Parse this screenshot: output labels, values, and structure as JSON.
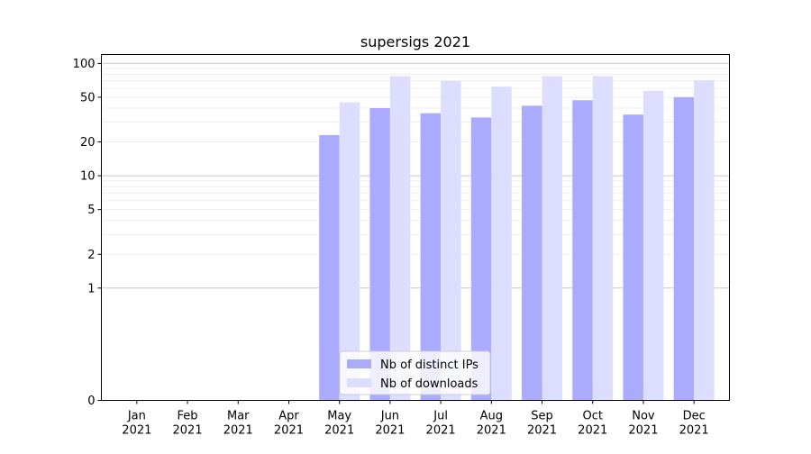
{
  "chart_data": {
    "type": "bar",
    "title": "supersigs 2021",
    "xlabel": "",
    "ylabel": "",
    "yscale": "symlog",
    "ylim": [
      0,
      120
    ],
    "categories": [
      [
        "Jan",
        "2021"
      ],
      [
        "Feb",
        "2021"
      ],
      [
        "Mar",
        "2021"
      ],
      [
        "Apr",
        "2021"
      ],
      [
        "May",
        "2021"
      ],
      [
        "Jun",
        "2021"
      ],
      [
        "Jul",
        "2021"
      ],
      [
        "Aug",
        "2021"
      ],
      [
        "Sep",
        "2021"
      ],
      [
        "Oct",
        "2021"
      ],
      [
        "Nov",
        "2021"
      ],
      [
        "Dec",
        "2021"
      ]
    ],
    "y_ticks": [
      {
        "value": 0,
        "label": "0"
      },
      {
        "value": 1,
        "label": "1"
      },
      {
        "value": 2,
        "label": "2"
      },
      {
        "value": 5,
        "label": "5"
      },
      {
        "value": 10,
        "label": "10"
      },
      {
        "value": 20,
        "label": "20"
      },
      {
        "value": 50,
        "label": "50"
      },
      {
        "value": 100,
        "label": "100"
      }
    ],
    "major_grid": [
      1,
      10,
      100
    ],
    "minor_grid": [
      2,
      3,
      4,
      5,
      6,
      7,
      8,
      9,
      20,
      30,
      40,
      50,
      60,
      70,
      80,
      90
    ],
    "series": [
      {
        "name": "Nb of distinct IPs",
        "color": "#aaaaff",
        "values": [
          0,
          0,
          0,
          0,
          23,
          40,
          36,
          33,
          42,
          47,
          35,
          50
        ]
      },
      {
        "name": "Nb of downloads",
        "color": "#ddddff",
        "values": [
          0,
          0,
          0,
          0,
          45,
          77,
          70,
          62,
          77,
          77,
          57,
          71
        ]
      }
    ],
    "legend": {
      "position": "lower center"
    },
    "grid": true
  }
}
